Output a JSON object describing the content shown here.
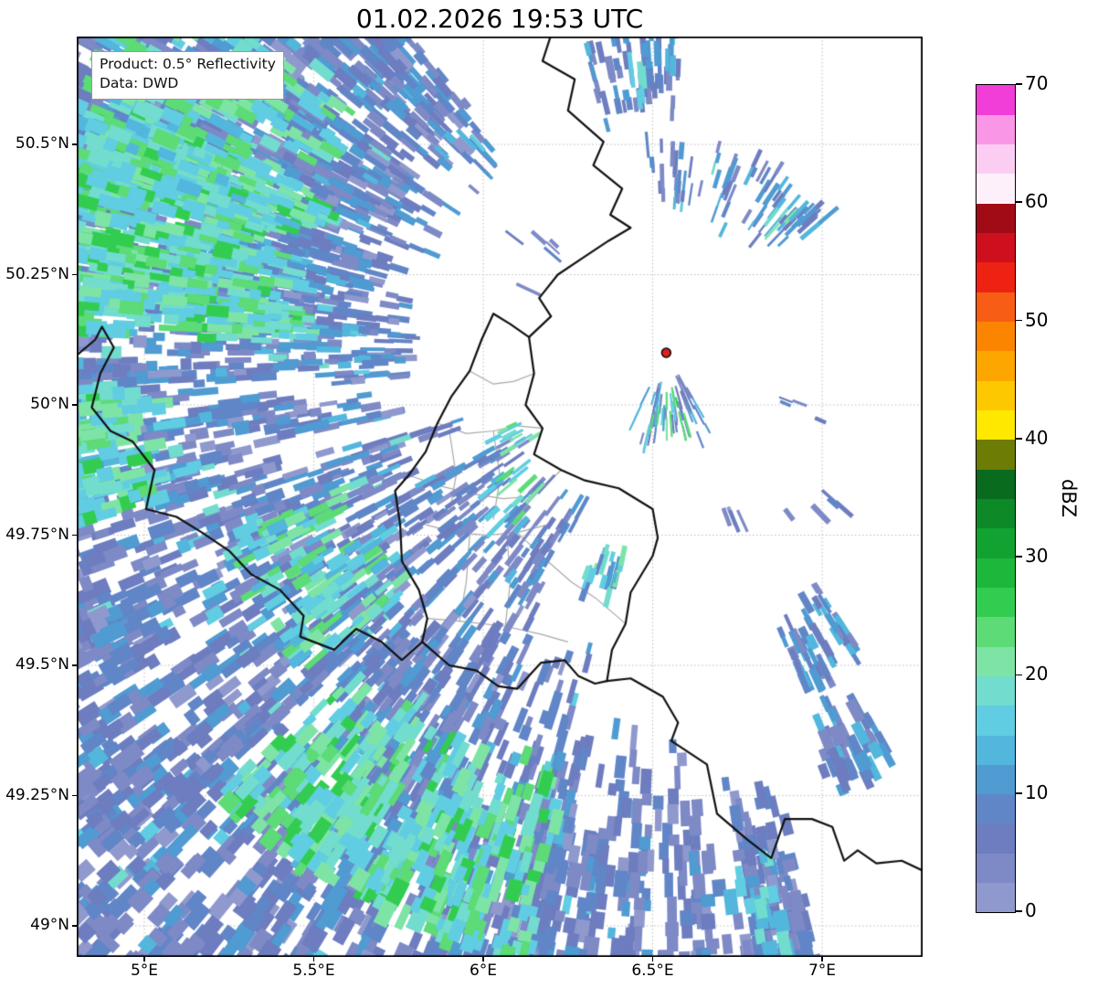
{
  "title": "01.02.2026 19:53 UTC",
  "annotation": {
    "line1": "Product: 0.5° Reflectivity",
    "line2": "Data: DWD"
  },
  "colorbar": {
    "label": "dBZ",
    "min": 0,
    "max": 70,
    "step": 2.5,
    "ticks": [
      0,
      10,
      20,
      30,
      40,
      50,
      60,
      70
    ],
    "colors_bottom_to_top": [
      "#9099cd",
      "#7e8ac6",
      "#6d7dbf",
      "#6186c7",
      "#4f9bd2",
      "#53b6dc",
      "#60cde2",
      "#72dcce",
      "#7ee4a5",
      "#5cdb76",
      "#32cd50",
      "#1cb83c",
      "#12a231",
      "#0d8928",
      "#086b1e",
      "#6c7c04",
      "#ffe800",
      "#fec800",
      "#fda600",
      "#fb8500",
      "#f75d14",
      "#ee2212",
      "#ce101e",
      "#a00b16",
      "#fdf0fa",
      "#fccdf2",
      "#fa96e6",
      "#f23ed8"
    ]
  },
  "axes": {
    "lat": {
      "labels": [
        "50.5°N",
        "50.25°N",
        "50°N",
        "49.75°N",
        "49.5°N",
        "49.25°N",
        "49°N"
      ],
      "values": [
        50.5,
        50.25,
        50.0,
        49.75,
        49.5,
        49.25,
        49.0
      ]
    },
    "lon": {
      "labels": [
        "5°E",
        "5.5°E",
        "6°E",
        "6.5°E",
        "7°E"
      ],
      "values": [
        5.0,
        5.5,
        6.0,
        6.5,
        7.0
      ]
    }
  },
  "map": {
    "grid_color": "#bdbdbd",
    "border_color": "#111111",
    "admin_color": "#a9a9a9",
    "background": "#ffffff",
    "radar_site": {
      "lon": 6.54,
      "lat": 50.1,
      "color": "#e01f1f"
    },
    "borders_national": [
      [
        [
          6.2,
          50.71
        ],
        [
          6.175,
          50.66
        ],
        [
          6.27,
          50.625
        ],
        [
          6.25,
          50.565
        ],
        [
          6.355,
          50.505
        ],
        [
          6.325,
          50.46
        ],
        [
          6.41,
          50.415
        ],
        [
          6.375,
          50.365
        ],
        [
          6.435,
          50.34
        ],
        [
          6.37,
          50.315
        ],
        [
          6.3,
          50.285
        ],
        [
          6.22,
          50.25
        ],
        [
          6.165,
          50.205
        ],
        [
          6.2,
          50.17
        ],
        [
          6.135,
          50.13
        ]
      ],
      [
        [
          6.135,
          50.13
        ],
        [
          6.15,
          50.06
        ],
        [
          6.125,
          50.0
        ],
        [
          6.175,
          49.955
        ],
        [
          6.15,
          49.905
        ],
        [
          6.23,
          49.875
        ],
        [
          6.3,
          49.855
        ],
        [
          6.4,
          49.84
        ],
        [
          6.5,
          49.8
        ],
        [
          6.515,
          49.745
        ],
        [
          6.5,
          49.71
        ],
        [
          6.435,
          49.64
        ],
        [
          6.42,
          49.58
        ],
        [
          6.38,
          49.53
        ],
        [
          6.365,
          49.47
        ]
      ],
      [
        [
          6.365,
          49.47
        ],
        [
          6.435,
          49.475
        ],
        [
          6.53,
          49.44
        ],
        [
          6.575,
          49.39
        ],
        [
          6.555,
          49.355
        ],
        [
          6.66,
          49.31
        ],
        [
          6.69,
          49.215
        ],
        [
          6.78,
          49.165
        ],
        [
          6.85,
          49.13
        ],
        [
          6.89,
          49.205
        ],
        [
          6.97,
          49.205
        ],
        [
          7.03,
          49.19
        ],
        [
          7.065,
          49.125
        ],
        [
          7.105,
          49.145
        ],
        [
          7.16,
          49.12
        ],
        [
          7.235,
          49.125
        ],
        [
          7.3,
          49.105
        ]
      ],
      [
        [
          6.135,
          50.13
        ],
        [
          6.08,
          50.155
        ],
        [
          6.03,
          50.175
        ],
        [
          5.995,
          50.125
        ],
        [
          5.96,
          50.065
        ],
        [
          5.905,
          50.015
        ],
        [
          5.865,
          49.965
        ],
        [
          5.83,
          49.91
        ],
        [
          5.78,
          49.865
        ],
        [
          5.74,
          49.835
        ],
        [
          5.755,
          49.77
        ],
        [
          5.76,
          49.7
        ],
        [
          5.81,
          49.645
        ],
        [
          5.835,
          49.59
        ],
        [
          5.82,
          49.545
        ]
      ],
      [
        [
          5.82,
          49.545
        ],
        [
          5.9,
          49.5
        ],
        [
          5.98,
          49.49
        ],
        [
          6.045,
          49.46
        ],
        [
          6.1,
          49.455
        ],
        [
          6.17,
          49.505
        ],
        [
          6.24,
          49.51
        ],
        [
          6.28,
          49.48
        ],
        [
          6.33,
          49.465
        ],
        [
          6.365,
          49.47
        ]
      ],
      [
        [
          4.8,
          50.095
        ],
        [
          4.855,
          50.125
        ],
        [
          4.875,
          50.15
        ],
        [
          4.91,
          50.11
        ],
        [
          4.87,
          50.06
        ],
        [
          4.845,
          49.995
        ],
        [
          4.9,
          49.95
        ],
        [
          4.965,
          49.93
        ],
        [
          5.03,
          49.875
        ],
        [
          5.005,
          49.8
        ],
        [
          5.095,
          49.785
        ],
        [
          5.17,
          49.755
        ],
        [
          5.25,
          49.72
        ],
        [
          5.315,
          49.675
        ],
        [
          5.4,
          49.645
        ],
        [
          5.47,
          49.595
        ],
        [
          5.46,
          49.555
        ],
        [
          5.56,
          49.53
        ],
        [
          5.625,
          49.57
        ],
        [
          5.7,
          49.545
        ],
        [
          5.76,
          49.51
        ],
        [
          5.82,
          49.545
        ]
      ]
    ],
    "borders_admin": [
      [
        [
          5.96,
          50.065
        ],
        [
          6.03,
          50.04
        ],
        [
          6.09,
          50.045
        ],
        [
          6.15,
          50.06
        ]
      ],
      [
        [
          5.865,
          49.965
        ],
        [
          5.95,
          49.945
        ],
        [
          6.03,
          49.95
        ],
        [
          6.1,
          49.96
        ],
        [
          6.175,
          49.955
        ]
      ],
      [
        [
          5.9,
          49.95
        ],
        [
          5.92,
          49.865
        ],
        [
          5.9,
          49.79
        ]
      ],
      [
        [
          6.03,
          49.95
        ],
        [
          6.05,
          49.86
        ],
        [
          6.03,
          49.78
        ]
      ],
      [
        [
          5.78,
          49.865
        ],
        [
          5.87,
          49.845
        ],
        [
          5.96,
          49.83
        ],
        [
          6.06,
          49.82
        ],
        [
          6.15,
          49.825
        ],
        [
          6.23,
          49.875
        ]
      ],
      [
        [
          5.83,
          49.77
        ],
        [
          5.92,
          49.755
        ],
        [
          6.01,
          49.75
        ],
        [
          6.1,
          49.755
        ],
        [
          6.19,
          49.77
        ]
      ],
      [
        [
          5.96,
          49.75
        ],
        [
          5.95,
          49.66
        ],
        [
          5.93,
          49.585
        ]
      ],
      [
        [
          6.07,
          49.75
        ],
        [
          6.08,
          49.66
        ],
        [
          6.065,
          49.575
        ]
      ],
      [
        [
          5.835,
          49.59
        ],
        [
          5.93,
          49.585
        ],
        [
          6.065,
          49.575
        ],
        [
          6.17,
          49.56
        ],
        [
          6.25,
          49.545
        ]
      ],
      [
        [
          6.1,
          49.755
        ],
        [
          6.19,
          49.7
        ],
        [
          6.26,
          49.66
        ],
        [
          6.33,
          49.63
        ],
        [
          6.42,
          49.58
        ]
      ]
    ]
  },
  "radar_echoes": {
    "seed": 20260201,
    "beam_width_deg": 0.95,
    "groups": [
      {
        "name": "nw-field",
        "az": [
          283,
          321
        ],
        "r": [
          52,
          190
        ],
        "n": 430,
        "len": [
          12,
          45
        ],
        "dbz": [
          2,
          13
        ],
        "gap": 0.25
      },
      {
        "name": "w-field",
        "az": [
          252,
          283
        ],
        "r": [
          52,
          190
        ],
        "n": 270,
        "len": [
          10,
          40
        ],
        "dbz": [
          2,
          13
        ],
        "gap": 0.28
      },
      {
        "name": "wsw-field",
        "az": [
          228,
          252
        ],
        "r": [
          45,
          190
        ],
        "n": 230,
        "len": [
          10,
          40
        ],
        "dbz": [
          2,
          12
        ],
        "gap": 0.33
      },
      {
        "name": "sw-streaks",
        "az": [
          205,
          228
        ],
        "r": [
          55,
          190
        ],
        "n": 175,
        "len": [
          15,
          55
        ],
        "dbz": [
          2,
          12
        ],
        "gap": 0.38
      },
      {
        "name": "ssw-streaks",
        "az": [
          192,
          205
        ],
        "r": [
          60,
          190
        ],
        "n": 115,
        "len": [
          15,
          60
        ],
        "dbz": [
          2,
          11
        ],
        "gap": 0.42
      },
      {
        "name": "s-streaks",
        "az": [
          176,
          192
        ],
        "r": [
          70,
          178
        ],
        "n": 95,
        "len": [
          15,
          50
        ],
        "dbz": [
          2,
          11
        ],
        "gap": 0.45
      },
      {
        "name": "se-streaks",
        "az": [
          166,
          176
        ],
        "r": [
          90,
          142
        ],
        "n": 55,
        "len": [
          10,
          35
        ],
        "dbz": [
          2,
          11
        ],
        "gap": 0.48
      },
      {
        "name": "nw-green-band",
        "az": [
          272,
          294
        ],
        "r": [
          72,
          125
        ],
        "n": 160,
        "len": [
          10,
          30
        ],
        "dbz": [
          15,
          27
        ],
        "gap": 0.3
      },
      {
        "name": "nw-corner-green",
        "az": [
          288,
          310
        ],
        "r": [
          78,
          132
        ],
        "n": 90,
        "len": [
          8,
          24
        ],
        "dbz": [
          14,
          25
        ],
        "gap": 0.4
      },
      {
        "name": "w-edge-green",
        "az": [
          254,
          266
        ],
        "r": [
          103,
          133
        ],
        "n": 55,
        "len": [
          8,
          22
        ],
        "dbz": [
          15,
          26
        ],
        "gap": 0.35
      },
      {
        "name": "wsw-green",
        "az": [
          228,
          248
        ],
        "r": [
          68,
          96
        ],
        "n": 55,
        "len": [
          8,
          22
        ],
        "dbz": [
          14,
          25
        ],
        "gap": 0.4
      },
      {
        "name": "sw-green-band",
        "az": [
          193,
          225
        ],
        "r": [
          88,
          128
        ],
        "n": 120,
        "len": [
          12,
          32
        ],
        "dbz": [
          15,
          27
        ],
        "gap": 0.38
      },
      {
        "name": "w-near-specks",
        "az": [
          265,
          276
        ],
        "r": [
          52,
          70
        ],
        "n": 22,
        "len": [
          4,
          12
        ],
        "dbz": [
          4,
          16
        ],
        "gap": 0.45
      },
      {
        "name": "nnw-near-specks",
        "az": [
          295,
          315
        ],
        "r": [
          25,
          36
        ],
        "n": 7,
        "len": [
          2,
          6
        ],
        "dbz": [
          2,
          8
        ],
        "gap": 0.55
      },
      {
        "name": "n-top-cells",
        "az": [
          345,
          362
        ],
        "r": [
          48,
          63
        ],
        "n": 42,
        "len": [
          4,
          12
        ],
        "dbz": [
          3,
          13
        ],
        "gap": 0.42
      },
      {
        "name": "n-top-green",
        "az": [
          350,
          358
        ],
        "r": [
          52,
          60
        ],
        "n": 10,
        "len": [
          2,
          6
        ],
        "dbz": [
          13,
          19
        ],
        "gap": 0.5
      },
      {
        "name": "ne-cells",
        "az": [
          355,
          410
        ],
        "r": [
          27,
          42
        ],
        "n": 60,
        "len": [
          4,
          11
        ],
        "dbz": [
          3,
          13
        ],
        "gap": 0.42
      },
      {
        "name": "ne-green",
        "az": [
          396,
          404
        ],
        "r": [
          29,
          38
        ],
        "n": 14,
        "len": [
          2,
          6
        ],
        "dbz": [
          13,
          22
        ],
        "gap": 0.5
      },
      {
        "name": "near-s-cell",
        "az": [
          150,
          212
        ],
        "r": [
          5,
          16
        ],
        "n": 42,
        "len": [
          2,
          6
        ],
        "dbz": [
          4,
          15
        ],
        "gap": 0.4
      },
      {
        "name": "near-s-green",
        "az": [
          163,
          200
        ],
        "r": [
          7,
          14
        ],
        "n": 20,
        "len": [
          2,
          5
        ],
        "dbz": [
          16,
          26
        ],
        "gap": 0.4
      },
      {
        "name": "wlux-cluster",
        "az": [
          208,
          242
        ],
        "r": [
          33,
          56
        ],
        "n": 75,
        "len": [
          4,
          13
        ],
        "dbz": [
          3,
          13
        ],
        "gap": 0.42
      },
      {
        "name": "wlux-green",
        "az": [
          214,
          238
        ],
        "r": [
          36,
          50
        ],
        "n": 16,
        "len": [
          2,
          6
        ],
        "dbz": [
          14,
          24
        ],
        "gap": 0.5
      },
      {
        "name": "lux-green-dot",
        "az": [
          238,
          245
        ],
        "r": [
          31,
          37
        ],
        "n": 10,
        "len": [
          2,
          6
        ],
        "dbz": [
          15,
          26
        ],
        "gap": 0.4
      },
      {
        "name": "slux-dot",
        "az": [
          192,
          200
        ],
        "r": [
          41,
          49
        ],
        "n": 14,
        "len": [
          3,
          8
        ],
        "dbz": [
          9,
          22
        ],
        "gap": 0.45
      },
      {
        "name": "e-cell-near",
        "az": [
          147,
          158
        ],
        "r": [
          55,
          72
        ],
        "n": 34,
        "len": [
          5,
          14
        ],
        "dbz": [
          3,
          15
        ],
        "gap": 0.45
      },
      {
        "name": "se-cell",
        "az": [
          151,
          159
        ],
        "r": [
          78,
          95
        ],
        "n": 30,
        "len": [
          5,
          14
        ],
        "dbz": [
          3,
          15
        ],
        "gap": 0.45
      },
      {
        "name": "ese-specks",
        "az": [
          131,
          143
        ],
        "r": [
          40,
          48
        ],
        "n": 9,
        "len": [
          2,
          6
        ],
        "dbz": [
          2,
          9
        ],
        "gap": 0.55
      },
      {
        "name": "e-speck",
        "az": [
          108,
          118
        ],
        "r": [
          25,
          31
        ],
        "n": 4,
        "len": [
          2,
          5
        ],
        "dbz": [
          2,
          7
        ],
        "gap": 0.5
      },
      {
        "name": "se-speck-near",
        "az": [
          152,
          160
        ],
        "r": [
          33,
          39
        ],
        "n": 4,
        "len": [
          2,
          5
        ],
        "dbz": [
          2,
          7
        ],
        "gap": 0.5
      },
      {
        "name": "se-bottom-green",
        "az": [
          168,
          174
        ],
        "r": [
          98,
          126
        ],
        "n": 12,
        "len": [
          6,
          16
        ],
        "dbz": [
          13,
          20
        ],
        "gap": 0.5
      }
    ]
  }
}
